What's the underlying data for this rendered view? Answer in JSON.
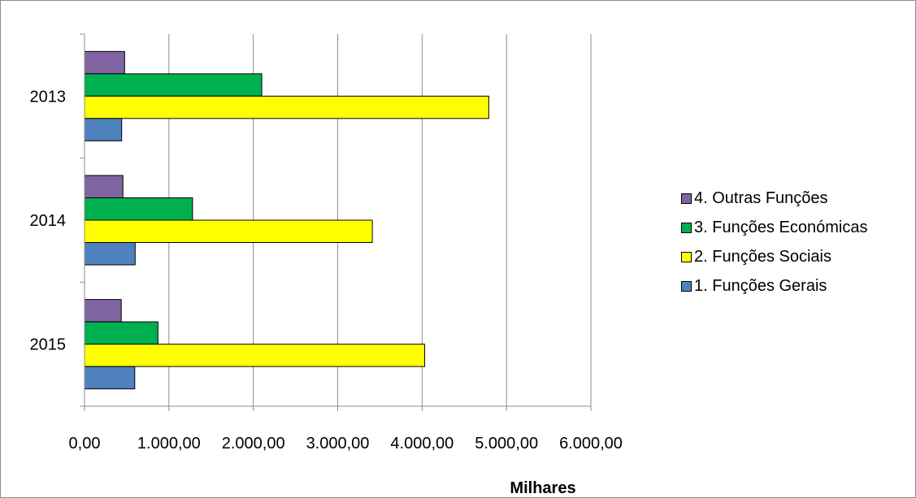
{
  "chart_data": {
    "type": "bar",
    "orientation": "horizontal",
    "categories": [
      "2013",
      "2014",
      "2015"
    ],
    "series": [
      {
        "name": "1. Funções Gerais",
        "color": "#4F81BD",
        "values": [
          440,
          600,
          595
        ]
      },
      {
        "name": "2. Funções Sociais",
        "color": "#FFFF00",
        "values": [
          4790,
          3410,
          4030
        ]
      },
      {
        "name": "3. Funções Económicas",
        "color": "#00B050",
        "values": [
          2100,
          1280,
          870
        ]
      },
      {
        "name": "4. Outras Funções",
        "color": "#8064A2",
        "values": [
          475,
          455,
          435
        ]
      }
    ],
    "xlabel": "Milhares",
    "xlim": [
      0,
      6000
    ],
    "x_ticks": [
      0,
      1000,
      2000,
      3000,
      4000,
      5000,
      6000
    ],
    "x_tick_labels": [
      "0,00",
      "1.000,00",
      "2.000,00",
      "3.000,00",
      "4.000,00",
      "5.000,00",
      "6.000,00"
    ],
    "gridlines": "vertical",
    "legend_position": "right"
  }
}
